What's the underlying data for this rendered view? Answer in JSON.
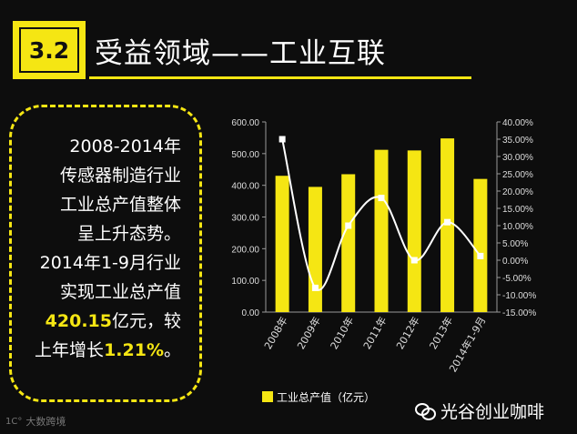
{
  "header": {
    "section_number": "3.2",
    "title": "受益领域——工业互联"
  },
  "callout": {
    "lines": [
      "2008-2014年",
      "传感器制造行业",
      "工业总产值整体",
      "呈上升态势。",
      "2014年1-9月行业",
      "实现工业总产值"
    ],
    "value_highlight": "420.15",
    "value_suffix": "亿元，较",
    "growth_prefix": "上年增长",
    "growth_highlight": "1.21%",
    "growth_suffix": "。"
  },
  "chart_data": {
    "type": "bar",
    "categories": [
      "2008年",
      "2009年",
      "2010年",
      "2011年",
      "2012年",
      "2013年",
      "2014年1-9月"
    ],
    "series": [
      {
        "name": "工业总产值（亿元）",
        "type": "bar",
        "axis": "left",
        "values": [
          430,
          395,
          435,
          512,
          510,
          548,
          420.15
        ]
      },
      {
        "name": "",
        "type": "line",
        "axis": "right",
        "values": [
          35.0,
          -8.0,
          10.0,
          18.0,
          0.0,
          11.0,
          1.21
        ]
      }
    ],
    "y_left": {
      "min": 0,
      "max": 600,
      "ticks": [
        "0.00",
        "100.00",
        "200.00",
        "300.00",
        "400.00",
        "500.00",
        "600.00"
      ]
    },
    "y_right": {
      "min": -15,
      "max": 40,
      "ticks": [
        "-15.00%",
        "-10.00%",
        "-5.00%",
        "0.00%",
        "5.00%",
        "10.00%",
        "15.00%",
        "20.00%",
        "25.00%",
        "30.00%",
        "35.00%",
        "40.00%"
      ]
    },
    "legend": {
      "label": "工业总产值（亿元）",
      "position": "bottom-left"
    },
    "grid": false,
    "colors": {
      "bar": "#f5e613",
      "line": "#ffffff",
      "axis": "#999999"
    }
  },
  "footer": {
    "watermark": "大数跨境",
    "brand": "光谷创业咖啡"
  }
}
